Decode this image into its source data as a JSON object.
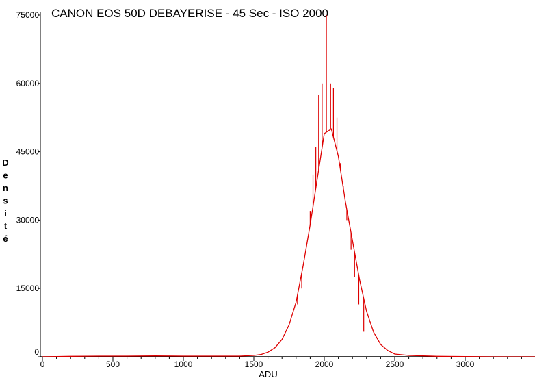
{
  "chart_data": {
    "type": "line",
    "title": "CANON EOS 50D DEBAYERISE - 45 Sec - ISO 2000",
    "xlabel": "ADU",
    "ylabel": "Densité",
    "xlim": [
      0,
      3500
    ],
    "ylim": [
      0,
      75000
    ],
    "x_ticks": [
      0,
      500,
      1000,
      1500,
      2000,
      2500,
      3000
    ],
    "y_ticks": [
      0,
      15000,
      30000,
      45000,
      60000,
      75000
    ],
    "grid": false,
    "legend": "none",
    "series": [
      {
        "color": "#dd0000",
        "x": [
          0,
          200,
          400,
          600,
          800,
          1000,
          1200,
          1400,
          1500,
          1550,
          1600,
          1650,
          1700,
          1750,
          1800,
          1850,
          1900,
          1950,
          2000,
          2050,
          2100,
          2150,
          2200,
          2250,
          2300,
          2350,
          2400,
          2450,
          2500,
          2600,
          2800,
          3000,
          3200,
          3500
        ],
        "y": [
          0,
          100,
          150,
          150,
          200,
          150,
          150,
          150,
          300,
          500,
          1000,
          2000,
          3800,
          7000,
          12000,
          20000,
          29000,
          39000,
          49000,
          50000,
          44000,
          34000,
          25500,
          17000,
          10000,
          5400,
          2700,
          1400,
          600,
          300,
          100,
          50,
          0,
          0
        ]
      }
    ],
    "spikes": [
      {
        "x": 1810,
        "y": 11500
      },
      {
        "x": 1840,
        "y": 15000
      },
      {
        "x": 1870,
        "y": 23500
      },
      {
        "x": 1900,
        "y": 32000
      },
      {
        "x": 1920,
        "y": 40000
      },
      {
        "x": 1940,
        "y": 46000
      },
      {
        "x": 1960,
        "y": 57500
      },
      {
        "x": 1985,
        "y": 60000
      },
      {
        "x": 2015,
        "y": 75000
      },
      {
        "x": 2045,
        "y": 60000
      },
      {
        "x": 2065,
        "y": 59000
      },
      {
        "x": 2090,
        "y": 52500
      },
      {
        "x": 2115,
        "y": 42500
      },
      {
        "x": 2135,
        "y": 37500
      },
      {
        "x": 2160,
        "y": 30000
      },
      {
        "x": 2190,
        "y": 23500
      },
      {
        "x": 2215,
        "y": 17500
      },
      {
        "x": 2245,
        "y": 11500
      },
      {
        "x": 2280,
        "y": 5500
      }
    ]
  }
}
